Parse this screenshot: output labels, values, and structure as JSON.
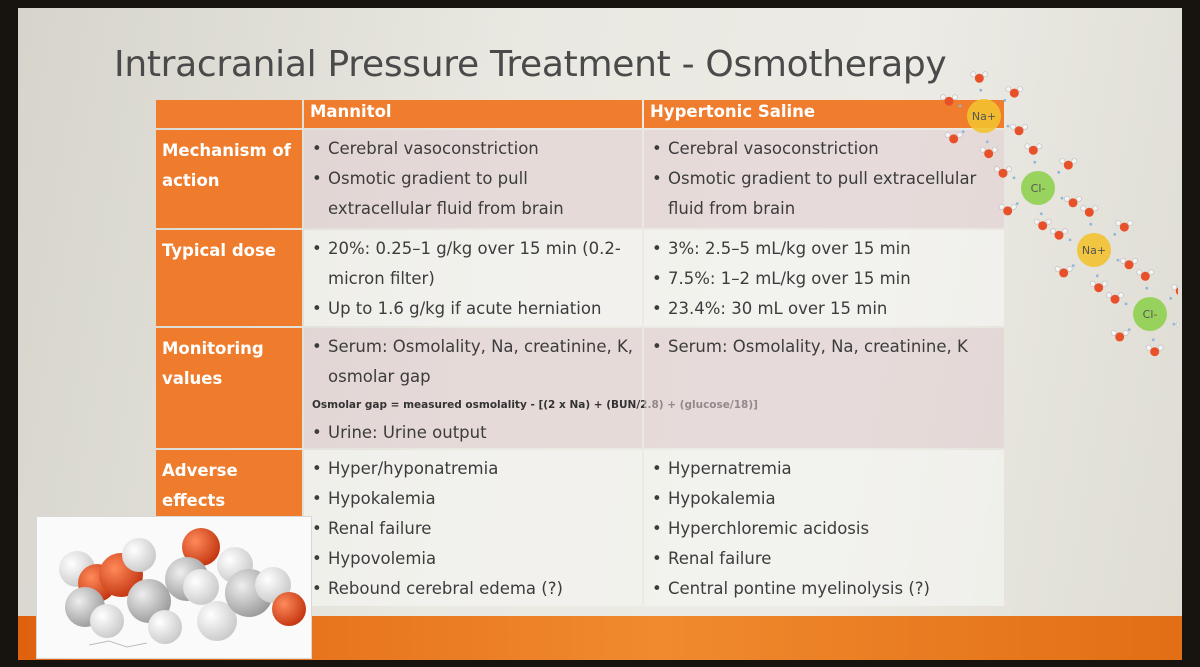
{
  "title": "Intracranial Pressure Treatment - Osmotherapy",
  "columns": [
    "Mannitol",
    "Hypertonic Saline"
  ],
  "rows": [
    {
      "label": "Mechanism of action",
      "mannitol": [
        "Cerebral vasoconstriction",
        "Osmotic gradient to pull extracellular fluid from brain"
      ],
      "saline": [
        "Cerebral vasoconstriction",
        "Osmotic gradient to pull extracellular fluid from brain"
      ]
    },
    {
      "label": "Typical dose",
      "mannitol": [
        "20%: 0.25–1 g/kg over 15 min (0.2-micron filter)",
        "Up to 1.6 g/kg if acute herniation"
      ],
      "saline": [
        "3%: 2.5–5 mL/kg over 15 min",
        "7.5%: 1–2 mL/kg over 15 min",
        "23.4%: 30 mL over 15 min"
      ]
    },
    {
      "label": "Monitoring values",
      "mannitol": [
        "Serum: Osmolality, Na, creatinine, K, osmolar gap"
      ],
      "mannitol_formula": "Osmolar gap = measured osmolality - [(2 x Na) + (BUN/2.8) + (glucose/18)]",
      "mannitol_extra": [
        "Urine: Urine output"
      ],
      "saline": [
        "Serum: Osmolality, Na, creatinine, K"
      ]
    },
    {
      "label": "Adverse effects",
      "mannitol": [
        "Hyper/hyponatremia",
        "Hypokalemia",
        "Renal failure",
        "Hypovolemia",
        "Rebound cerebral edema (?)"
      ],
      "saline": [
        "Hypernatremia",
        "Hypokalemia",
        "Hyperchloremic acidosis",
        "Renal failure",
        "Central pontine myelinolysis (?)"
      ]
    }
  ],
  "ions": [
    "Na+",
    "Cl-",
    "Na+",
    "Cl-"
  ],
  "colors": {
    "accent": "#ef7d2d",
    "na_ion": "#f2c230",
    "cl_ion": "#8fd14f",
    "oxygen": "#e8502a"
  }
}
